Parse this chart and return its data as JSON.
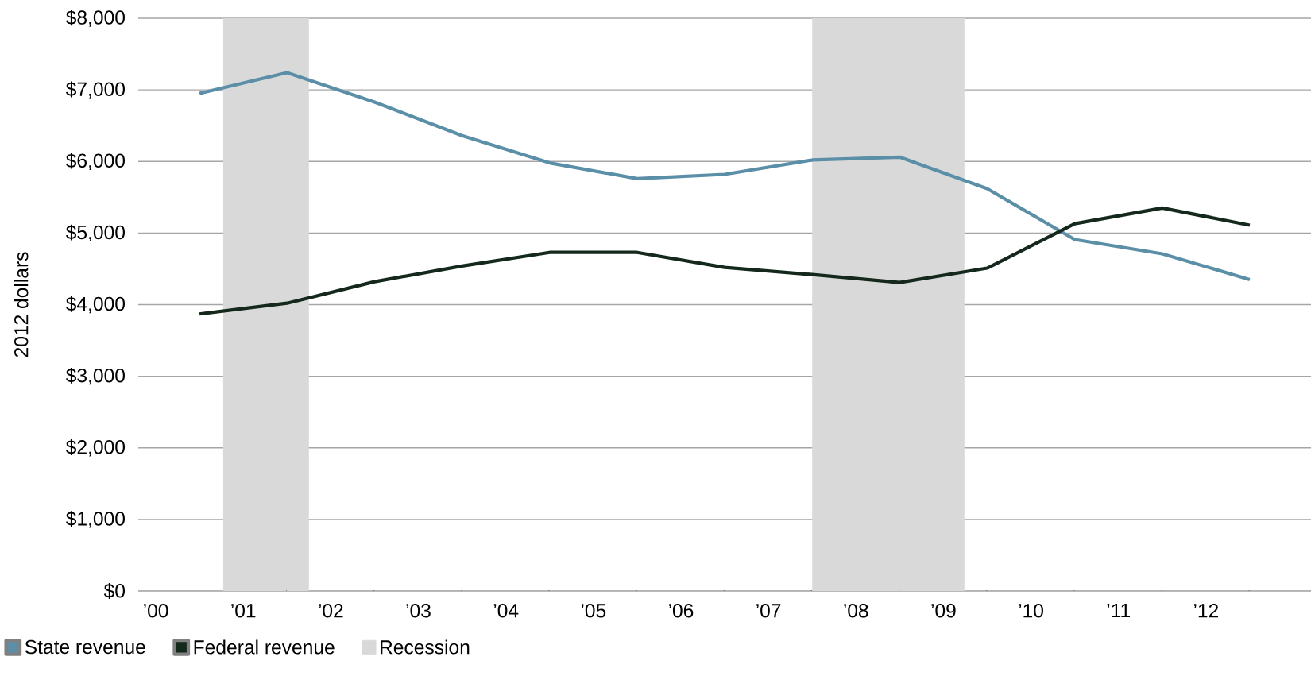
{
  "chart_data": {
    "type": "line",
    "ylabel": "2012 dollars",
    "x": [
      1,
      2,
      3,
      4,
      5,
      6,
      7,
      8,
      9,
      10,
      11,
      12,
      13
    ],
    "series": [
      {
        "name": "State revenue",
        "color": "#5b8fa8",
        "values": [
          6950,
          7240,
          6830,
          6360,
          5980,
          5760,
          5820,
          6020,
          6060,
          5620,
          4910,
          4710,
          4350
        ]
      },
      {
        "name": "Federal revenue",
        "color": "#14281c",
        "values": [
          3870,
          4020,
          4320,
          4540,
          4730,
          4730,
          4520,
          4420,
          4310,
          4510,
          5130,
          5350,
          5110
        ]
      }
    ],
    "xlim": [
      0.3,
      13.7
    ],
    "xticks": [
      {
        "value": 0.5,
        "label": "’00"
      },
      {
        "value": 1.5,
        "label": "’01"
      },
      {
        "value": 2.5,
        "label": "’02"
      },
      {
        "value": 3.5,
        "label": "’03"
      },
      {
        "value": 4.5,
        "label": "’04"
      },
      {
        "value": 5.5,
        "label": "’05"
      },
      {
        "value": 6.5,
        "label": "’06"
      },
      {
        "value": 7.5,
        "label": "’07"
      },
      {
        "value": 8.5,
        "label": "’08"
      },
      {
        "value": 9.5,
        "label": "’09"
      },
      {
        "value": 10.5,
        "label": "’10"
      },
      {
        "value": 11.5,
        "label": "’11"
      },
      {
        "value": 12.5,
        "label": "’12"
      }
    ],
    "ylim": [
      0,
      8000
    ],
    "yticks": [
      {
        "value": 0,
        "label": "$0"
      },
      {
        "value": 1000,
        "label": "$1,000"
      },
      {
        "value": 2000,
        "label": "$2,000"
      },
      {
        "value": 3000,
        "label": "$3,000"
      },
      {
        "value": 4000,
        "label": "$4,000"
      },
      {
        "value": 5000,
        "label": "$5,000"
      },
      {
        "value": 6000,
        "label": "$6,000"
      },
      {
        "value": 7000,
        "label": "$7,000"
      },
      {
        "value": 8000,
        "label": "$8,000"
      }
    ],
    "bands": [
      {
        "axis": "x",
        "from": 1.27,
        "to": 2.25,
        "label": "Recession",
        "color": "#d9d9d9"
      },
      {
        "axis": "x",
        "from": 8.0,
        "to": 9.74,
        "color": "#d9d9d9"
      }
    ],
    "grid": "y",
    "legend": "bottom left"
  }
}
